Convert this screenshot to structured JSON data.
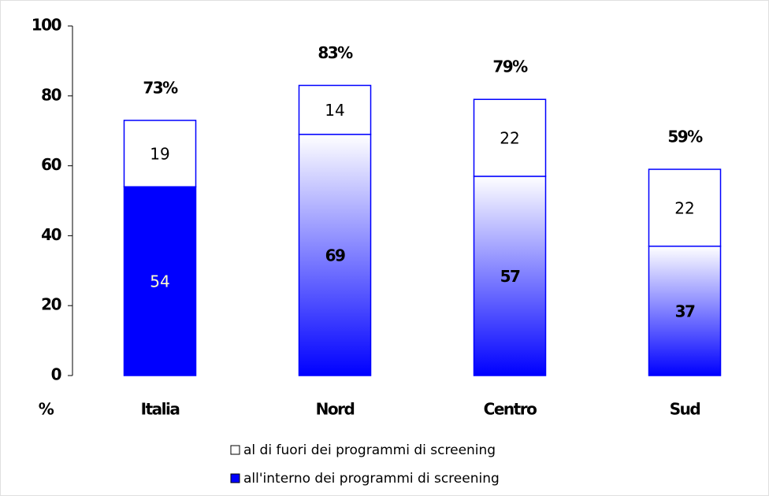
{
  "chart_data": {
    "type": "stacked_bar",
    "y_label": "%",
    "categories": [
      "Italia",
      "Nord",
      "Centro",
      "Sud"
    ],
    "series": [
      {
        "name": "all'interno dei programmi di screening",
        "color": "#0000ff",
        "values": [
          54,
          69,
          57,
          37
        ]
      },
      {
        "name": "al di fuori dei programmi di screening",
        "color": "#ffffff",
        "values": [
          19,
          14,
          22,
          22
        ]
      }
    ],
    "total_labels": [
      "73%",
      "83%",
      "79%",
      "59%"
    ],
    "ylim": [
      0,
      100
    ],
    "yticks": [
      0,
      20,
      40,
      60,
      80,
      100
    ]
  }
}
